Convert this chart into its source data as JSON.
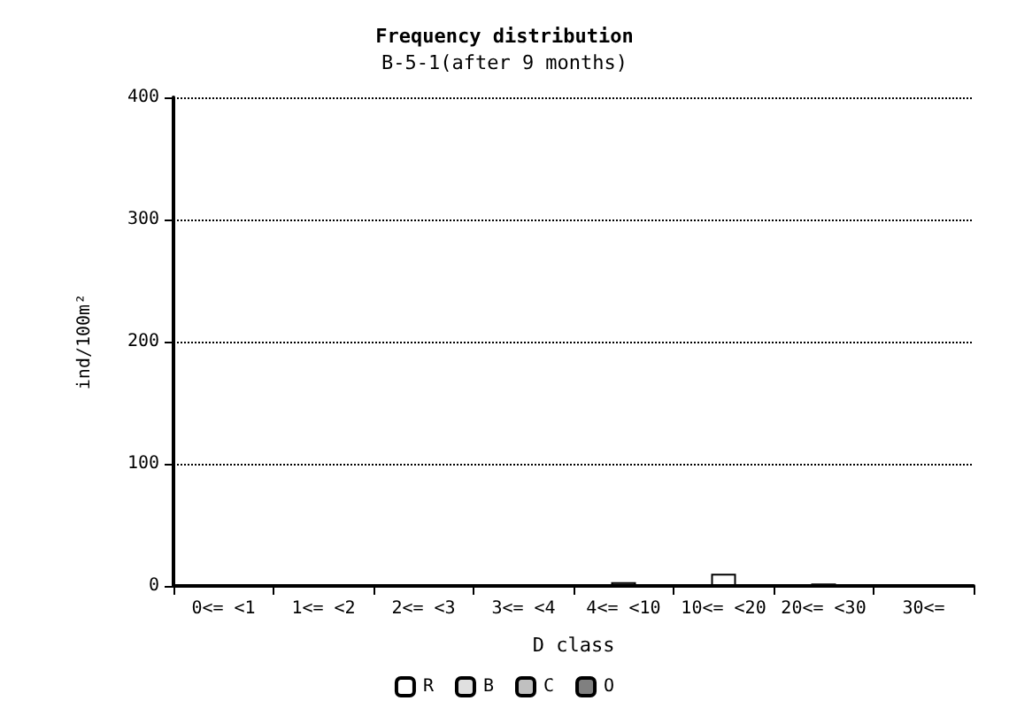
{
  "chart_data": {
    "type": "bar",
    "title": "Frequency distribution",
    "subtitle": "B-5-1(after 9 months)",
    "xlabel": "D class",
    "ylabel": "ind/100m²",
    "categories": [
      "0<= <1",
      "1<= <2",
      "2<= <3",
      "3<= <4",
      "4<= <10",
      "10<= <20",
      "20<= <30",
      "30<="
    ],
    "stacked": true,
    "series": [
      {
        "name": "R",
        "color": "#ffffff",
        "values": [
          0,
          0,
          0,
          0,
          0,
          10,
          0,
          0
        ]
      },
      {
        "name": "B",
        "color": "#e0e0e0",
        "values": [
          0,
          0,
          0,
          0,
          0,
          0,
          0,
          0
        ]
      },
      {
        "name": "C",
        "color": "#c0c0c0",
        "values": [
          0,
          0,
          0,
          0,
          3,
          0,
          0,
          0
        ]
      },
      {
        "name": "O",
        "color": "#808080",
        "values": [
          0,
          0,
          0,
          0,
          0,
          0,
          2,
          0
        ]
      }
    ],
    "ylim": [
      0,
      400
    ],
    "yticks": [
      0,
      100,
      200,
      300,
      400
    ],
    "grid": "y",
    "legend": "bottom"
  }
}
